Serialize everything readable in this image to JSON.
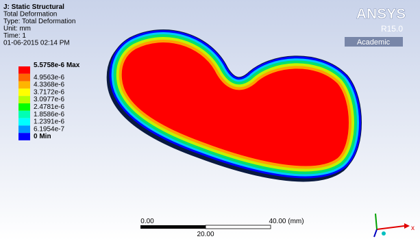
{
  "header": {
    "lines": [
      "J: Static Structural",
      "Total Deformation",
      "Type: Total Deformation",
      "Unit: mm",
      "Time: 1",
      "01-06-2015 02:14 PM"
    ]
  },
  "legend": {
    "items": [
      {
        "label": "5.5758e-6 Max",
        "color": "#ff0000"
      },
      {
        "label": "4.9563e-6",
        "color": "#ff6400"
      },
      {
        "label": "4.3368e-6",
        "color": "#ffb400"
      },
      {
        "label": "3.7172e-6",
        "color": "#ffff00"
      },
      {
        "label": "3.0977e-6",
        "color": "#b4ff00"
      },
      {
        "label": "2.4781e-6",
        "color": "#00ff00"
      },
      {
        "label": "1.8586e-6",
        "color": "#00ffb4"
      },
      {
        "label": "1.2391e-6",
        "color": "#00ffff"
      },
      {
        "label": "6.1954e-7",
        "color": "#0096ff"
      },
      {
        "label": "0 Min",
        "color": "#0000ff"
      }
    ]
  },
  "logo": {
    "name": "ANSYS",
    "release": "R15.0",
    "edition": "Academic"
  },
  "scale_bar": {
    "start": "0.00",
    "end": "40.00 (mm)",
    "mid": "20.00"
  },
  "triad": {
    "x_label": "x"
  }
}
